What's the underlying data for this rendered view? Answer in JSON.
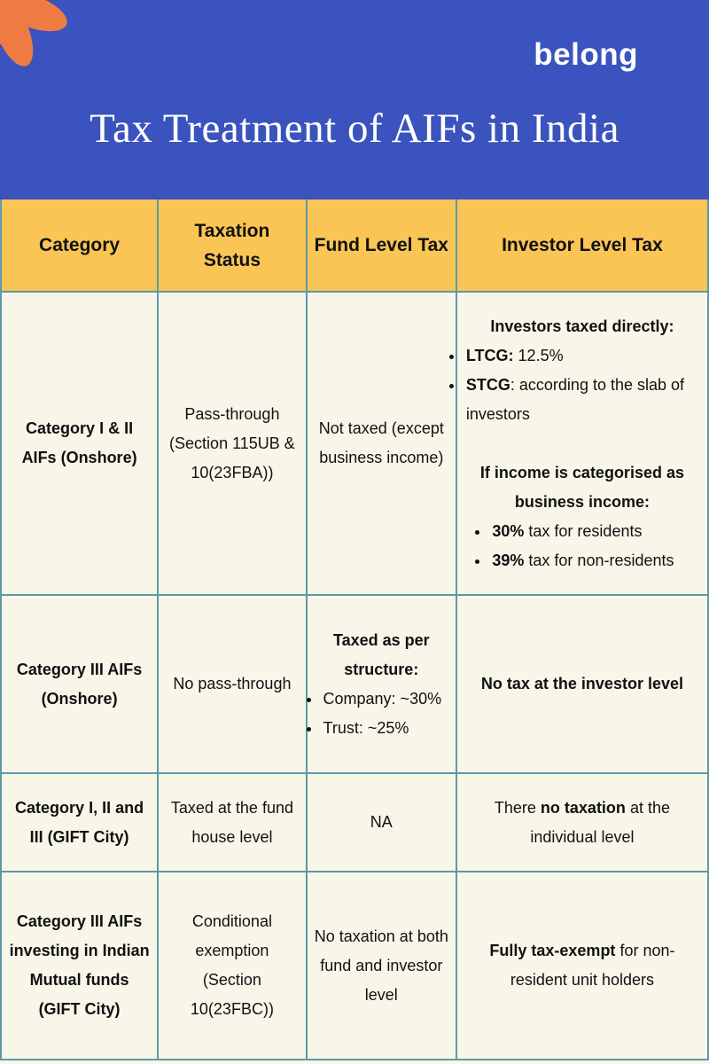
{
  "brand": {
    "logo_text": "belong",
    "colors": {
      "blue": "#3A53BE",
      "orange": "#EF7B44",
      "header_yellow": "#FAC554",
      "cell_cream": "#F8F6E9",
      "border_teal": "#5E98A9",
      "text": "#111111",
      "title_white": "#FFFFFF"
    }
  },
  "header": {
    "title": "Tax Treatment of AIFs in India"
  },
  "table": {
    "columns": [
      "Category",
      "Taxation Status",
      "Fund Level Tax",
      "Investor Level Tax"
    ],
    "column_keys": [
      "category",
      "taxation-status",
      "fund-level-tax",
      "investor-level-tax"
    ],
    "rows": [
      {
        "cells": [
          [
            {
              "type": "p",
              "segments": [
                {
                  "text": "Category I & II AIFs (Onshore)",
                  "bold": true
                }
              ]
            }
          ],
          [
            {
              "type": "p",
              "segments": [
                {
                  "text": "Pass-through (Section 115UB & 10(23FBA))",
                  "bold": false
                }
              ]
            }
          ],
          [
            {
              "type": "p",
              "segments": [
                {
                  "text": "Not taxed (except business income)",
                  "bold": false
                }
              ]
            }
          ],
          [
            {
              "type": "p",
              "segments": [
                {
                  "text": "Investors taxed directly:",
                  "bold": true
                }
              ]
            },
            {
              "type": "ul",
              "items": [
                [
                  {
                    "text": "LTCG:",
                    "bold": true
                  },
                  {
                    "text": " 12.5%",
                    "bold": false
                  }
                ],
                [
                  {
                    "text": "STCG",
                    "bold": true
                  },
                  {
                    "text": ": according to the slab of investors",
                    "bold": false
                  }
                ]
              ]
            },
            {
              "type": "p",
              "segments": [
                {
                  "text": "If income is categorised as business income:",
                  "bold": true
                }
              ]
            },
            {
              "type": "ul",
              "items": [
                [
                  {
                    "text": "30%",
                    "bold": true
                  },
                  {
                    "text": " tax for residents",
                    "bold": false
                  }
                ],
                [
                  {
                    "text": "39%",
                    "bold": true
                  },
                  {
                    "text": " tax for non-residents",
                    "bold": false
                  }
                ]
              ]
            }
          ]
        ]
      },
      {
        "cells": [
          [
            {
              "type": "p",
              "segments": [
                {
                  "text": "Category III AIFs (Onshore)",
                  "bold": true
                }
              ]
            }
          ],
          [
            {
              "type": "p",
              "segments": [
                {
                  "text": "No pass-through",
                  "bold": false
                }
              ]
            }
          ],
          [
            {
              "type": "p",
              "segments": [
                {
                  "text": "Taxed as per structure:",
                  "bold": true
                }
              ]
            },
            {
              "type": "ul",
              "items": [
                [
                  {
                    "text": "Company: ~30%",
                    "bold": false
                  }
                ],
                [
                  {
                    "text": "Trust: ~25%",
                    "bold": false
                  }
                ]
              ]
            }
          ],
          [
            {
              "type": "p",
              "segments": [
                {
                  "text": "No tax at the investor level",
                  "bold": true
                }
              ]
            }
          ]
        ]
      },
      {
        "cells": [
          [
            {
              "type": "p",
              "segments": [
                {
                  "text": "Category I, II and III (GIFT City)",
                  "bold": true
                }
              ]
            }
          ],
          [
            {
              "type": "p",
              "segments": [
                {
                  "text": "Taxed at the fund house level",
                  "bold": false
                }
              ]
            }
          ],
          [
            {
              "type": "p",
              "segments": [
                {
                  "text": "NA",
                  "bold": false
                }
              ]
            }
          ],
          [
            {
              "type": "p",
              "segments": [
                {
                  "text": "There ",
                  "bold": false
                },
                {
                  "text": "no taxation",
                  "bold": true
                },
                {
                  "text": " at the individual level",
                  "bold": false
                }
              ]
            }
          ]
        ]
      },
      {
        "cells": [
          [
            {
              "type": "p",
              "segments": [
                {
                  "text": "Category III AIFs investing in Indian Mutual funds (GIFT City)",
                  "bold": true
                }
              ]
            }
          ],
          [
            {
              "type": "p",
              "segments": [
                {
                  "text": "Conditional exemption (Section 10(23FBC))",
                  "bold": false
                }
              ]
            }
          ],
          [
            {
              "type": "p",
              "segments": [
                {
                  "text": "No taxation at both fund and investor level",
                  "bold": false
                }
              ]
            }
          ],
          [
            {
              "type": "p",
              "segments": [
                {
                  "text": "Fully tax-exempt",
                  "bold": true
                },
                {
                  "text": " for non-resident unit holders",
                  "bold": false
                }
              ]
            }
          ]
        ]
      }
    ]
  }
}
